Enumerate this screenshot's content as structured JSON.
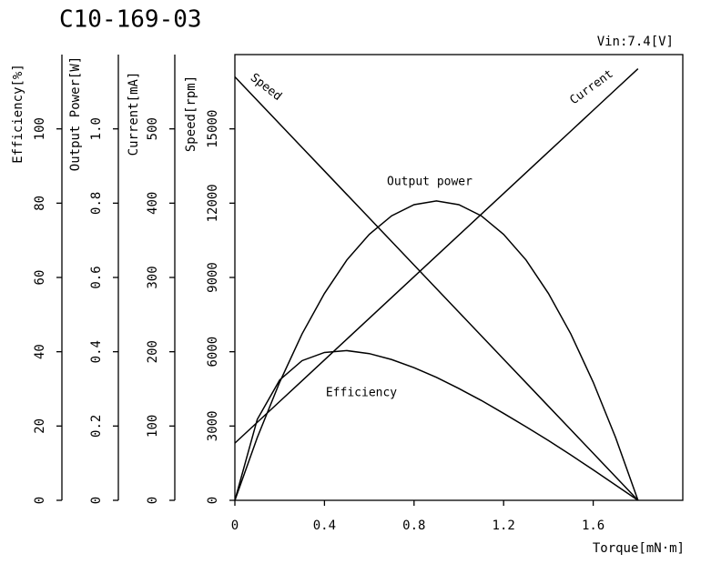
{
  "chart_data": {
    "type": "line",
    "title": "C10-169-03",
    "annotation": "Vin:7.4[V]",
    "x_label": "Torque[mN·m]",
    "xlim": [
      0,
      2.0
    ],
    "xticks": [
      0,
      0.4,
      0.8,
      1.2,
      1.6
    ],
    "axes": [
      {
        "label": "Efficiency[%]",
        "ylim": [
          0,
          120
        ],
        "yticks": [
          0,
          20,
          40,
          60,
          80,
          100
        ]
      },
      {
        "label": "Output Power[W]",
        "ylim": [
          0,
          1.2
        ],
        "yticks": [
          0,
          0.2,
          0.4,
          0.6,
          0.8,
          {
            "value": 1.0,
            "label": "1.0"
          }
        ]
      },
      {
        "label": "Current[mA]",
        "ylim": [
          0,
          600
        ],
        "yticks": [
          0,
          100,
          200,
          300,
          400,
          500
        ]
      },
      {
        "label": "Speed[rpm]",
        "ylim": [
          0,
          18000
        ],
        "yticks": [
          0,
          3000,
          6000,
          9000,
          12000,
          15000
        ]
      }
    ],
    "x": [
      0,
      0.1,
      0.2,
      0.3,
      0.4,
      0.5,
      0.6,
      0.7,
      0.8,
      0.9,
      1.0,
      1.1,
      1.2,
      1.3,
      1.4,
      1.5,
      1.6,
      1.7,
      1.8
    ],
    "series": [
      {
        "name": "Speed",
        "axis": 3,
        "color": "#000000",
        "values": [
          17100,
          16150,
          15200,
          14250,
          13300,
          12350,
          11400,
          10450,
          9500,
          8550,
          7600,
          6650,
          5700,
          4750,
          3800,
          2850,
          1900,
          950,
          0
        ]
      },
      {
        "name": "Current",
        "axis": 2,
        "color": "#000000",
        "values": [
          77,
          105,
          133,
          161,
          189,
          217,
          245,
          273,
          301,
          329,
          357,
          385,
          413,
          441,
          469,
          497,
          525,
          553,
          581
        ]
      },
      {
        "name": "Output power",
        "axis": 1,
        "color": "#000000",
        "values": [
          0,
          0.169,
          0.318,
          0.448,
          0.557,
          0.647,
          0.716,
          0.766,
          0.796,
          0.806,
          0.796,
          0.766,
          0.716,
          0.647,
          0.557,
          0.448,
          0.318,
          0.169,
          0
        ]
      },
      {
        "name": "Efficiency",
        "axis": 0,
        "color": "#000000",
        "values": [
          0,
          21.8,
          32.4,
          37.6,
          39.8,
          40.3,
          39.5,
          37.9,
          35.7,
          33.1,
          30.1,
          26.9,
          23.4,
          19.8,
          16.1,
          12.2,
          8.2,
          4.1,
          0
        ]
      }
    ]
  }
}
